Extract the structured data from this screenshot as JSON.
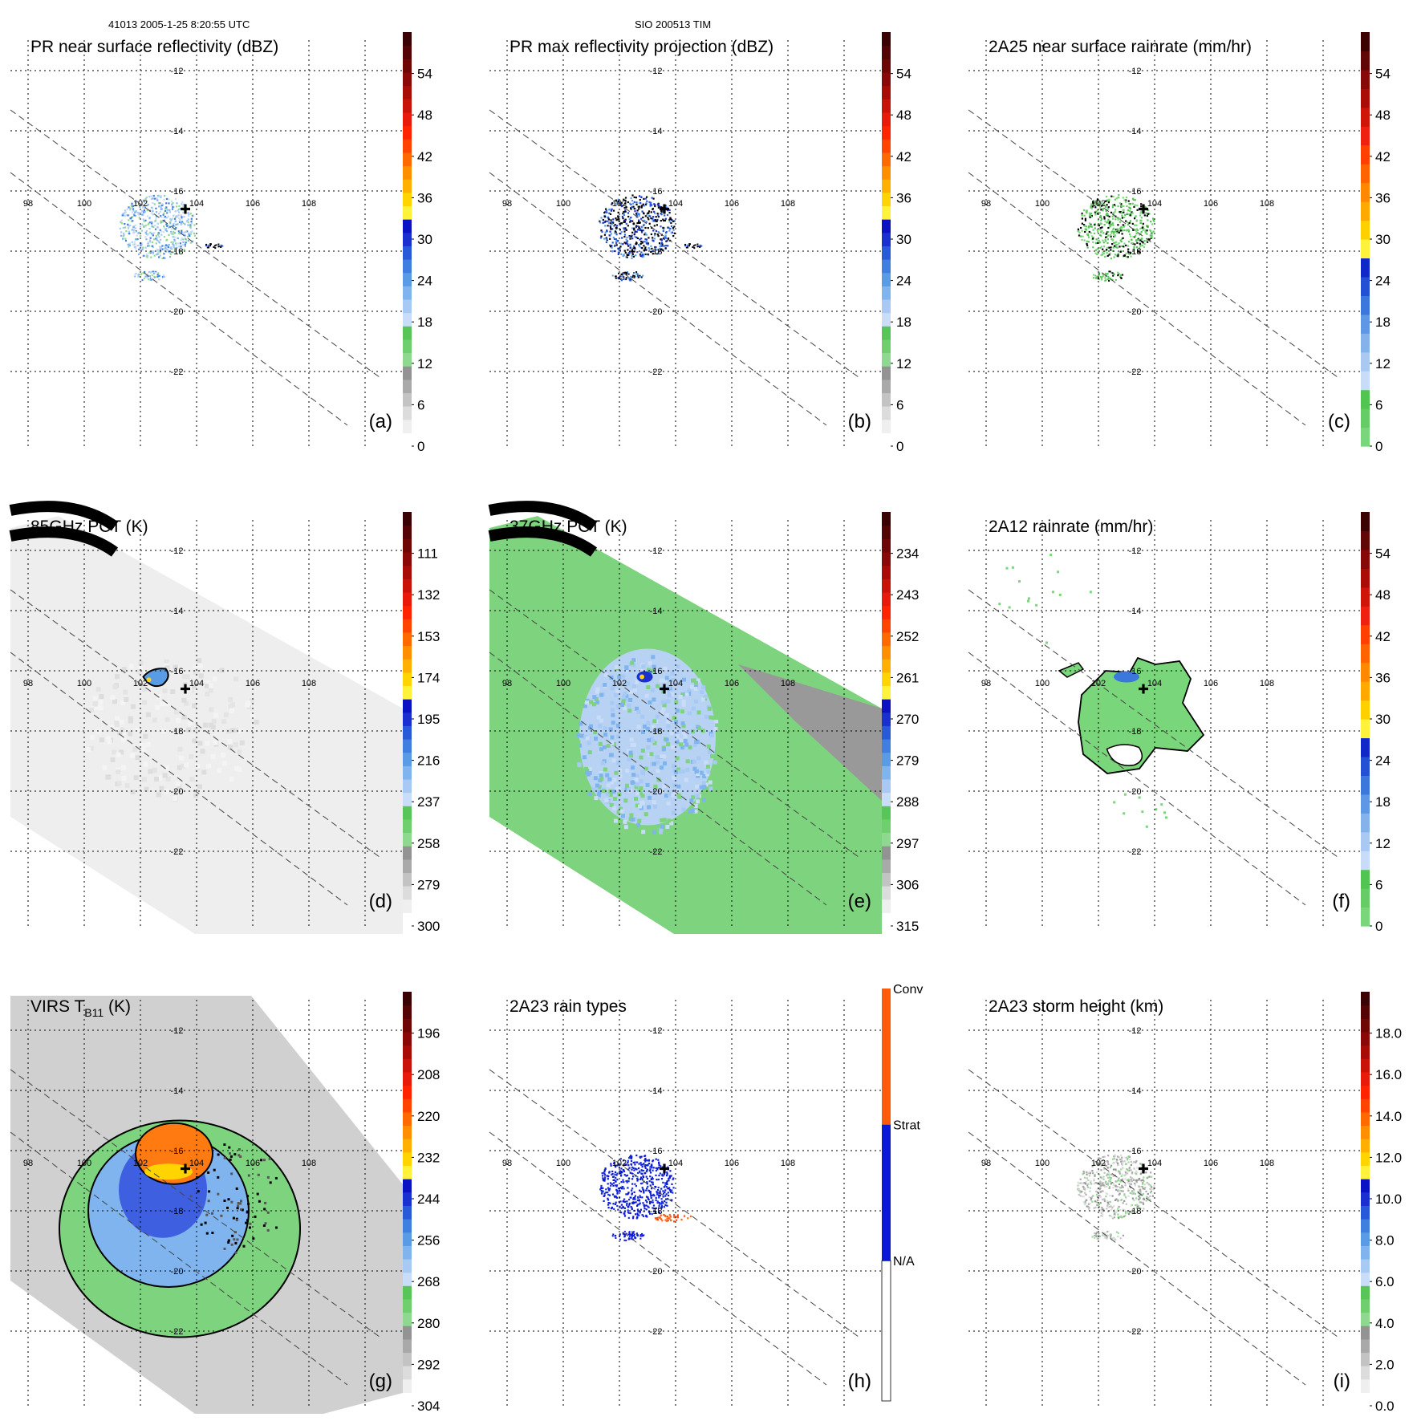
{
  "header": {
    "left": "41013 2005-1-25 8:20:55 UTC",
    "center": "SIO 200513 TIM"
  },
  "style": {
    "grid": "#000000",
    "swath": "#444444",
    "frame_bg": "#ffffff"
  },
  "chart_data": [
    {
      "id": "a",
      "type": "heatmap",
      "title": "PR near surface reflectivity (dBZ)",
      "panel_label": "(a)",
      "x_ticks": [
        "98",
        "100",
        "102",
        "104",
        "106",
        "108"
      ],
      "y_ticks": [
        "-12",
        "-14",
        "-16",
        "-18",
        "-20",
        "-22"
      ],
      "colorbar": {
        "ticks": [
          "0",
          "6",
          "12",
          "18",
          "24",
          "30",
          "36",
          "42",
          "48",
          "54"
        ]
      },
      "storm_center": {
        "lon": 103.2,
        "lat": -16.6
      }
    },
    {
      "id": "b",
      "type": "heatmap",
      "title": "PR max reflectivity projection (dBZ)",
      "panel_label": "(b)",
      "x_ticks": [
        "98",
        "100",
        "102",
        "104",
        "106",
        "108"
      ],
      "y_ticks": [
        "-12",
        "-14",
        "-16",
        "-18",
        "-20",
        "-22"
      ],
      "colorbar": {
        "ticks": [
          "0",
          "6",
          "12",
          "18",
          "24",
          "30",
          "36",
          "42",
          "48",
          "54"
        ]
      },
      "storm_center": {
        "lon": 103.2,
        "lat": -16.6
      }
    },
    {
      "id": "c",
      "type": "heatmap",
      "title": "2A25 near surface rainrate (mm/hr)",
      "panel_label": "(c)",
      "x_ticks": [
        "98",
        "100",
        "102",
        "104",
        "106",
        "108"
      ],
      "y_ticks": [
        "-12",
        "-14",
        "-16",
        "-18",
        "-20",
        "-22"
      ],
      "colorbar": {
        "ticks": [
          "0",
          "6",
          "12",
          "18",
          "24",
          "30",
          "36",
          "42",
          "48",
          "54"
        ]
      },
      "storm_center": {
        "lon": 103.2,
        "lat": -16.6
      }
    },
    {
      "id": "d",
      "type": "heatmap",
      "title": "85GHz PCT (K)",
      "panel_label": "(d)",
      "x_ticks": [
        "98",
        "100",
        "102",
        "104",
        "106",
        "108"
      ],
      "y_ticks": [
        "-12",
        "-14",
        "-16",
        "-18",
        "-20",
        "-22"
      ],
      "colorbar": {
        "ticks": [
          "300",
          "279",
          "258",
          "237",
          "216",
          "195",
          "174",
          "153",
          "132",
          "111"
        ]
      },
      "storm_center": {
        "lon": 103.2,
        "lat": -16.6
      }
    },
    {
      "id": "e",
      "type": "heatmap",
      "title": "37GHz PCT (K)",
      "panel_label": "(e)",
      "x_ticks": [
        "98",
        "100",
        "102",
        "104",
        "106",
        "108"
      ],
      "y_ticks": [
        "-12",
        "-14",
        "-16",
        "-18",
        "-20",
        "-22"
      ],
      "colorbar": {
        "ticks": [
          "315",
          "306",
          "297",
          "288",
          "279",
          "270",
          "261",
          "252",
          "243",
          "234"
        ]
      },
      "storm_center": {
        "lon": 103.2,
        "lat": -16.6
      }
    },
    {
      "id": "f",
      "type": "heatmap",
      "title": "2A12 rainrate (mm/hr)",
      "panel_label": "(f)",
      "x_ticks": [
        "98",
        "100",
        "102",
        "104",
        "106",
        "108"
      ],
      "y_ticks": [
        "-12",
        "-14",
        "-16",
        "-18",
        "-20",
        "-22"
      ],
      "colorbar": {
        "ticks": [
          "0",
          "6",
          "12",
          "18",
          "24",
          "30",
          "36",
          "42",
          "48",
          "54"
        ]
      },
      "storm_center": {
        "lon": 103.2,
        "lat": -16.6
      }
    },
    {
      "id": "g",
      "type": "heatmap",
      "title": "VIRS T",
      "title_sub": "B11",
      "title_suffix": " (K)",
      "panel_label": "(g)",
      "x_ticks": [
        "98",
        "100",
        "102",
        "104",
        "106",
        "108"
      ],
      "y_ticks": [
        "-12",
        "-14",
        "-16",
        "-18",
        "-20",
        "-22"
      ],
      "colorbar": {
        "ticks": [
          "304",
          "292",
          "280",
          "268",
          "256",
          "244",
          "232",
          "220",
          "208",
          "196"
        ]
      },
      "storm_center": {
        "lon": 103.2,
        "lat": -16.6
      }
    },
    {
      "id": "h",
      "type": "heatmap",
      "title": "2A23 rain types",
      "panel_label": "(h)",
      "x_ticks": [
        "98",
        "100",
        "102",
        "104",
        "106",
        "108"
      ],
      "y_ticks": [
        "-12",
        "-14",
        "-16",
        "-18",
        "-20",
        "-22"
      ],
      "colorbar": {
        "ticks": [
          "N/A",
          "Strat",
          "Conv"
        ]
      },
      "storm_center": {
        "lon": 103.2,
        "lat": -16.6
      }
    },
    {
      "id": "i",
      "type": "heatmap",
      "title": "2A23 storm height (km)",
      "panel_label": "(i)",
      "x_ticks": [
        "98",
        "100",
        "102",
        "104",
        "106",
        "108"
      ],
      "y_ticks": [
        "-12",
        "-14",
        "-16",
        "-18",
        "-20",
        "-22"
      ],
      "colorbar": {
        "ticks": [
          "0.0",
          "2.0",
          "4.0",
          "6.0",
          "8.0",
          "10.0",
          "12.0",
          "14.0",
          "16.0",
          "18.0"
        ]
      },
      "storm_center": {
        "lon": 103.2,
        "lat": -16.6
      }
    }
  ]
}
